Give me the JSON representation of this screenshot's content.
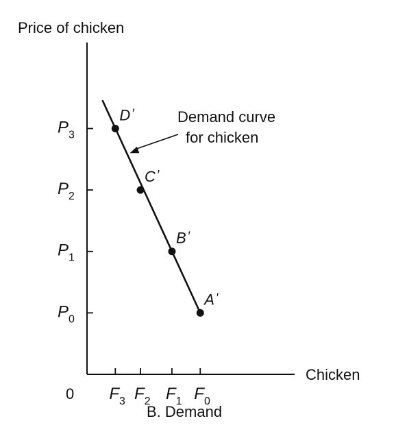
{
  "chart_data": {
    "type": "line",
    "ylabel": "Price of chicken",
    "xlabel": "Chicken",
    "origin_label": "0",
    "caption": "B. Demand",
    "y_ticks": [
      {
        "base": "P",
        "sub": "0",
        "value": 0
      },
      {
        "base": "P",
        "sub": "1",
        "value": 1
      },
      {
        "base": "P",
        "sub": "2",
        "value": 2
      },
      {
        "base": "P",
        "sub": "3",
        "value": 3
      }
    ],
    "x_ticks": [
      {
        "base": "F",
        "sub": "3",
        "value": 0.45
      },
      {
        "base": "F",
        "sub": "2",
        "value": 0.85
      },
      {
        "base": "F",
        "sub": "1",
        "value": 1.35
      },
      {
        "base": "F",
        "sub": "0",
        "value": 1.8
      }
    ],
    "xlim": [
      0,
      3.3
    ],
    "ylim": [
      -1,
      4.4
    ],
    "series": [
      {
        "points": [
          {
            "label": "D",
            "prime": "′",
            "x": 0.45,
            "y": 3
          },
          {
            "label": "C",
            "prime": "′",
            "x": 0.85,
            "y": 2
          },
          {
            "label": "B",
            "prime": "′",
            "x": 1.35,
            "y": 1
          },
          {
            "label": "A",
            "prime": "′",
            "x": 1.8,
            "y": 0
          }
        ],
        "line_extends_to": {
          "x": 0.25,
          "y": 3.45
        }
      }
    ],
    "annotation": {
      "lines": [
        "Demand curve",
        "for chicken"
      ],
      "arrow_target": {
        "x": 0.68,
        "y": 2.6
      }
    },
    "grid": false,
    "legend": "none"
  }
}
